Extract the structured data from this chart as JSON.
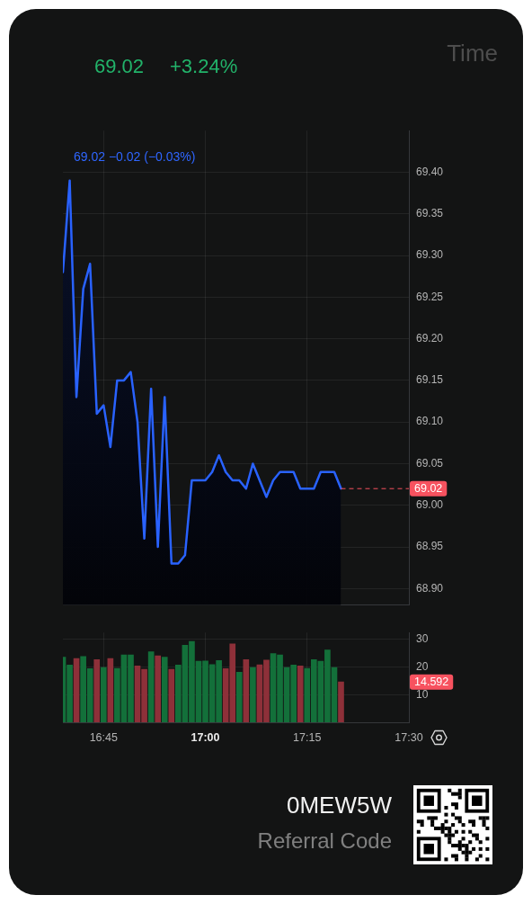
{
  "chart_data": [
    {
      "type": "area",
      "subtitle": "69.02 −0.02 (−0.03%)",
      "annotations": [
        "69.02",
        "+3.24%",
        "Time"
      ],
      "x": [
        16.65,
        16.6667,
        16.6833,
        16.7,
        16.7167,
        16.7333,
        16.75,
        16.7667,
        16.7833,
        16.8,
        16.8167,
        16.8333,
        16.85,
        16.8667,
        16.8833,
        16.9,
        16.9167,
        16.9333,
        16.95,
        16.9667,
        16.9833,
        17,
        17.0167,
        17.0333,
        17.05,
        17.0667,
        17.0833,
        17.1,
        17.1167,
        17.1333,
        17.15,
        17.1667,
        17.1833,
        17.2,
        17.2167,
        17.2333,
        17.25,
        17.2667,
        17.2833,
        17.3,
        17.3167,
        17.3333
      ],
      "series": [
        {
          "color": "#2962ff",
          "values": [
            69.28,
            69.39,
            69.13,
            69.26,
            69.29,
            69.11,
            69.12,
            69.07,
            69.15,
            69.15,
            69.16,
            69.1,
            68.96,
            69.14,
            68.95,
            69.13,
            68.93,
            68.93,
            68.94,
            69.03,
            69.03,
            69.03,
            69.04,
            69.06,
            69.04,
            69.03,
            69.03,
            69.02,
            69.05,
            69.03,
            69.01,
            69.03,
            69.04,
            69.04,
            69.04,
            69.02,
            69.02,
            69.02,
            69.04,
            69.04,
            69.04,
            69.02
          ]
        }
      ],
      "xlim": [
        16.65,
        17.5
      ],
      "xticks": [
        {
          "value": 16.75,
          "label": null
        },
        {
          "value": 17,
          "label": null
        },
        {
          "value": 17.25,
          "label": null
        },
        {
          "value": 17.5,
          "label": null
        }
      ],
      "ylim": [
        68.88,
        69.45
      ],
      "yticks": [
        {
          "value": 68.9,
          "label": "68.90"
        },
        68.95,
        {
          "value": 69,
          "label": "69.00"
        },
        69.05,
        {
          "value": 69.1,
          "label": "69.10"
        },
        69.15,
        {
          "value": 69.2,
          "label": "69.20"
        },
        69.25,
        {
          "value": 69.3,
          "label": "69.30"
        },
        69.35,
        {
          "value": 69.4,
          "label": "69.40"
        }
      ],
      "grid": true,
      "tick_labels": "y",
      "ref_lines": [
        {
          "axis": "y",
          "value": 69.02,
          "label": "69.02",
          "color": "#f7525f",
          "line_style": "dashed"
        }
      ]
    },
    {
      "type": "bar",
      "x": [
        16.65,
        16.6667,
        16.6833,
        16.7,
        16.7167,
        16.7333,
        16.75,
        16.7667,
        16.7833,
        16.8,
        16.8167,
        16.8333,
        16.85,
        16.8667,
        16.8833,
        16.9,
        16.9167,
        16.9333,
        16.95,
        16.9667,
        16.9833,
        17,
        17.0167,
        17.0333,
        17.05,
        17.0667,
        17.0833,
        17.1,
        17.1167,
        17.1333,
        17.15,
        17.1667,
        17.1833,
        17.2,
        17.2167,
        17.2333,
        17.25,
        17.2667,
        17.2833,
        17.3,
        17.3167,
        17.3333
      ],
      "values": [
        23.6,
        20.7,
        23.1,
        23.8,
        19.4,
        22.7,
        19.8,
        23.1,
        19.5,
        24.4,
        24.4,
        20.4,
        19.2,
        25.5,
        24.1,
        23.6,
        19.2,
        20.7,
        27.9,
        29.3,
        22.1,
        22.2,
        20.9,
        22.4,
        19.4,
        28.4,
        18.1,
        22.7,
        19.8,
        20.8,
        22.5,
        24.9,
        24.4,
        19.8,
        20.7,
        20.4,
        19.5,
        22.7,
        22.1,
        26.2,
        19.8,
        14.592
      ],
      "colors": [
        "#13703a",
        "#13703a",
        "#8e3039",
        "#13703a",
        "#13703a",
        "#8e3039",
        "#13703a",
        "#8e3039",
        "#13703a",
        "#13703a",
        "#13703a",
        "#8e3039",
        "#8e3039",
        "#13703a",
        "#8e3039",
        "#13703a",
        "#8e3039",
        "#13703a",
        "#13703a",
        "#13703a",
        "#13703a",
        "#13703a",
        "#13703a",
        "#13703a",
        "#8e3039",
        "#8e3039",
        "#13703a",
        "#8e3039",
        "#13703a",
        "#8e3039",
        "#8e3039",
        "#13703a",
        "#13703a",
        "#13703a",
        "#13703a",
        "#8e3039",
        "#13703a",
        "#13703a",
        "#13703a",
        "#13703a",
        "#13703a",
        "#8e3039"
      ],
      "xlim": [
        16.65,
        17.5
      ],
      "xticks": [
        {
          "value": 16.75,
          "label": "16:45"
        },
        {
          "value": 17,
          "label": "17:00"
        },
        {
          "value": 17.25,
          "label": "17:15"
        },
        {
          "value": 17.5,
          "label": "17:30"
        }
      ],
      "ylim": [
        0,
        32.5
      ],
      "yticks": [
        10,
        20,
        30
      ],
      "grid": true,
      "annotations": [
        "14.592",
        "0MEW5W",
        "Referral Code"
      ]
    }
  ]
}
